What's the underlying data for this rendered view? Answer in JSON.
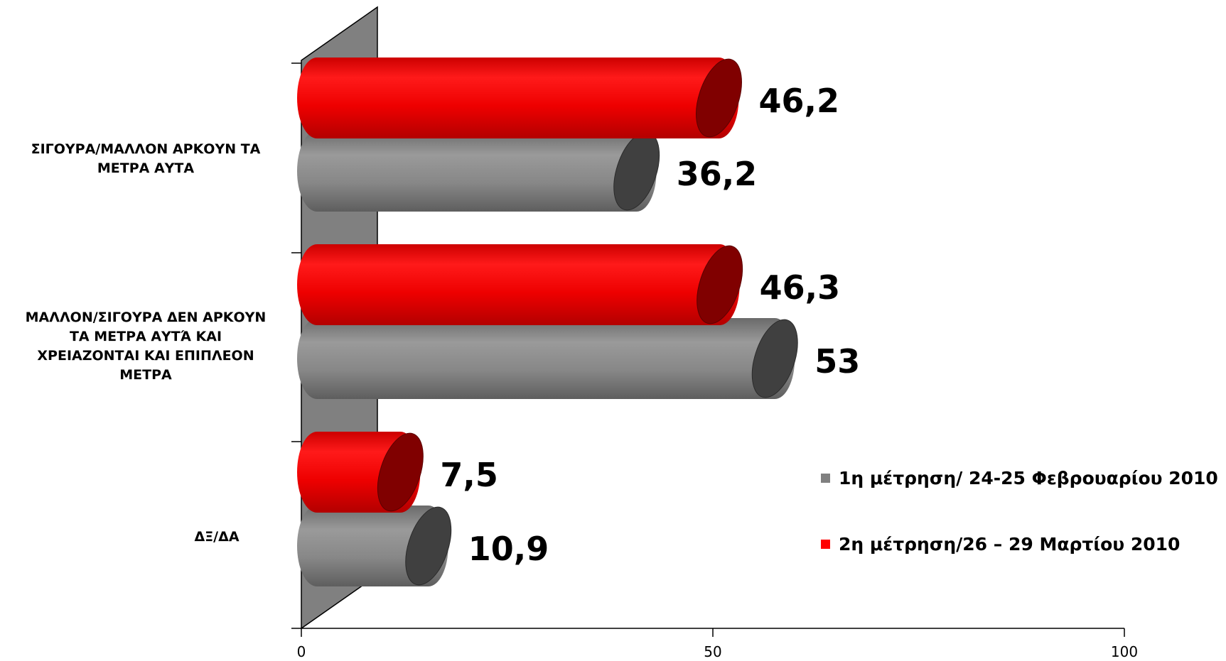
{
  "chart_data": {
    "type": "bar",
    "orientation": "horizontal",
    "style": "3d-cylinder",
    "categories": [
      "ΣΙΓΟΥΡΑ/ΜΑΛΛΟΝ ΑΡΚΟΥΝ ΤΑ\nΜΕΤΡΑ ΑΥΤΑ",
      "ΜΑΛΛΟΝ/ΣΙΓΟΥΡΑ ΔΕΝ ΑΡΚΟΥΝ\nΤΑ ΜΕΤΡΑ ΑΥΤΆ ΚΑΙ\nΧΡΕΙΑΖΟΝΤΑΙ ΚΑΙ ΕΠΙΠΛΕΟΝ\nΜΕΤΡΑ",
      "ΔΞ/ΔΑ"
    ],
    "series": [
      {
        "name": "1η μέτρηση/ 24-25 Φεβρουαρίου 2010",
        "color": "#808080",
        "values": [
          36.2,
          53,
          10.9
        ],
        "labels": [
          "36,2",
          "53",
          "10,9"
        ]
      },
      {
        "name": "2η μέτρηση/26 – 29 Μαρτίου 2010",
        "color": "#ff0000",
        "values": [
          46.2,
          46.3,
          7.5
        ],
        "labels": [
          "46,2",
          "46,3",
          "7,5"
        ]
      }
    ],
    "xlim": [
      0,
      100
    ],
    "xticks": [
      "0",
      "50",
      "100"
    ],
    "legend_position": "right",
    "grid": false
  }
}
